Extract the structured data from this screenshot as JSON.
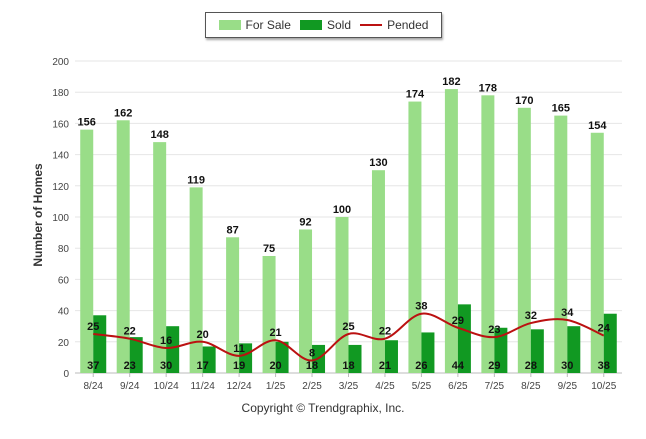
{
  "chart_data": {
    "type": "bar",
    "title": "",
    "xlabel": "",
    "ylabel": "Number of Homes",
    "ylim": [
      0,
      200
    ],
    "yticks": [
      "0",
      "20",
      "40",
      "60",
      "80",
      "100",
      "120",
      "140",
      "160",
      "180",
      "200"
    ],
    "categories": [
      "8/24",
      "9/24",
      "10/24",
      "11/24",
      "12/24",
      "1/25",
      "2/25",
      "3/25",
      "4/25",
      "5/25",
      "6/25",
      "7/25",
      "8/25",
      "9/25",
      "10/25"
    ],
    "series": [
      {
        "name": "For Sale",
        "kind": "bar",
        "color": "#99dd88",
        "values": [
          156,
          162,
          148,
          119,
          87,
          75,
          92,
          100,
          130,
          174,
          182,
          178,
          170,
          165,
          154
        ]
      },
      {
        "name": "Sold",
        "kind": "bar",
        "color": "#119922",
        "values": [
          37,
          23,
          30,
          17,
          19,
          20,
          18,
          18,
          21,
          26,
          44,
          29,
          28,
          30,
          38
        ]
      },
      {
        "name": "Pended",
        "kind": "line",
        "color": "#bb1111",
        "values": [
          25,
          22,
          16,
          20,
          11,
          21,
          8,
          25,
          22,
          38,
          29,
          23,
          32,
          34,
          24
        ]
      }
    ],
    "legend_position": "top-center",
    "grid": true
  },
  "footer": {
    "copyright": "Copyright © Trendgraphix, Inc."
  }
}
